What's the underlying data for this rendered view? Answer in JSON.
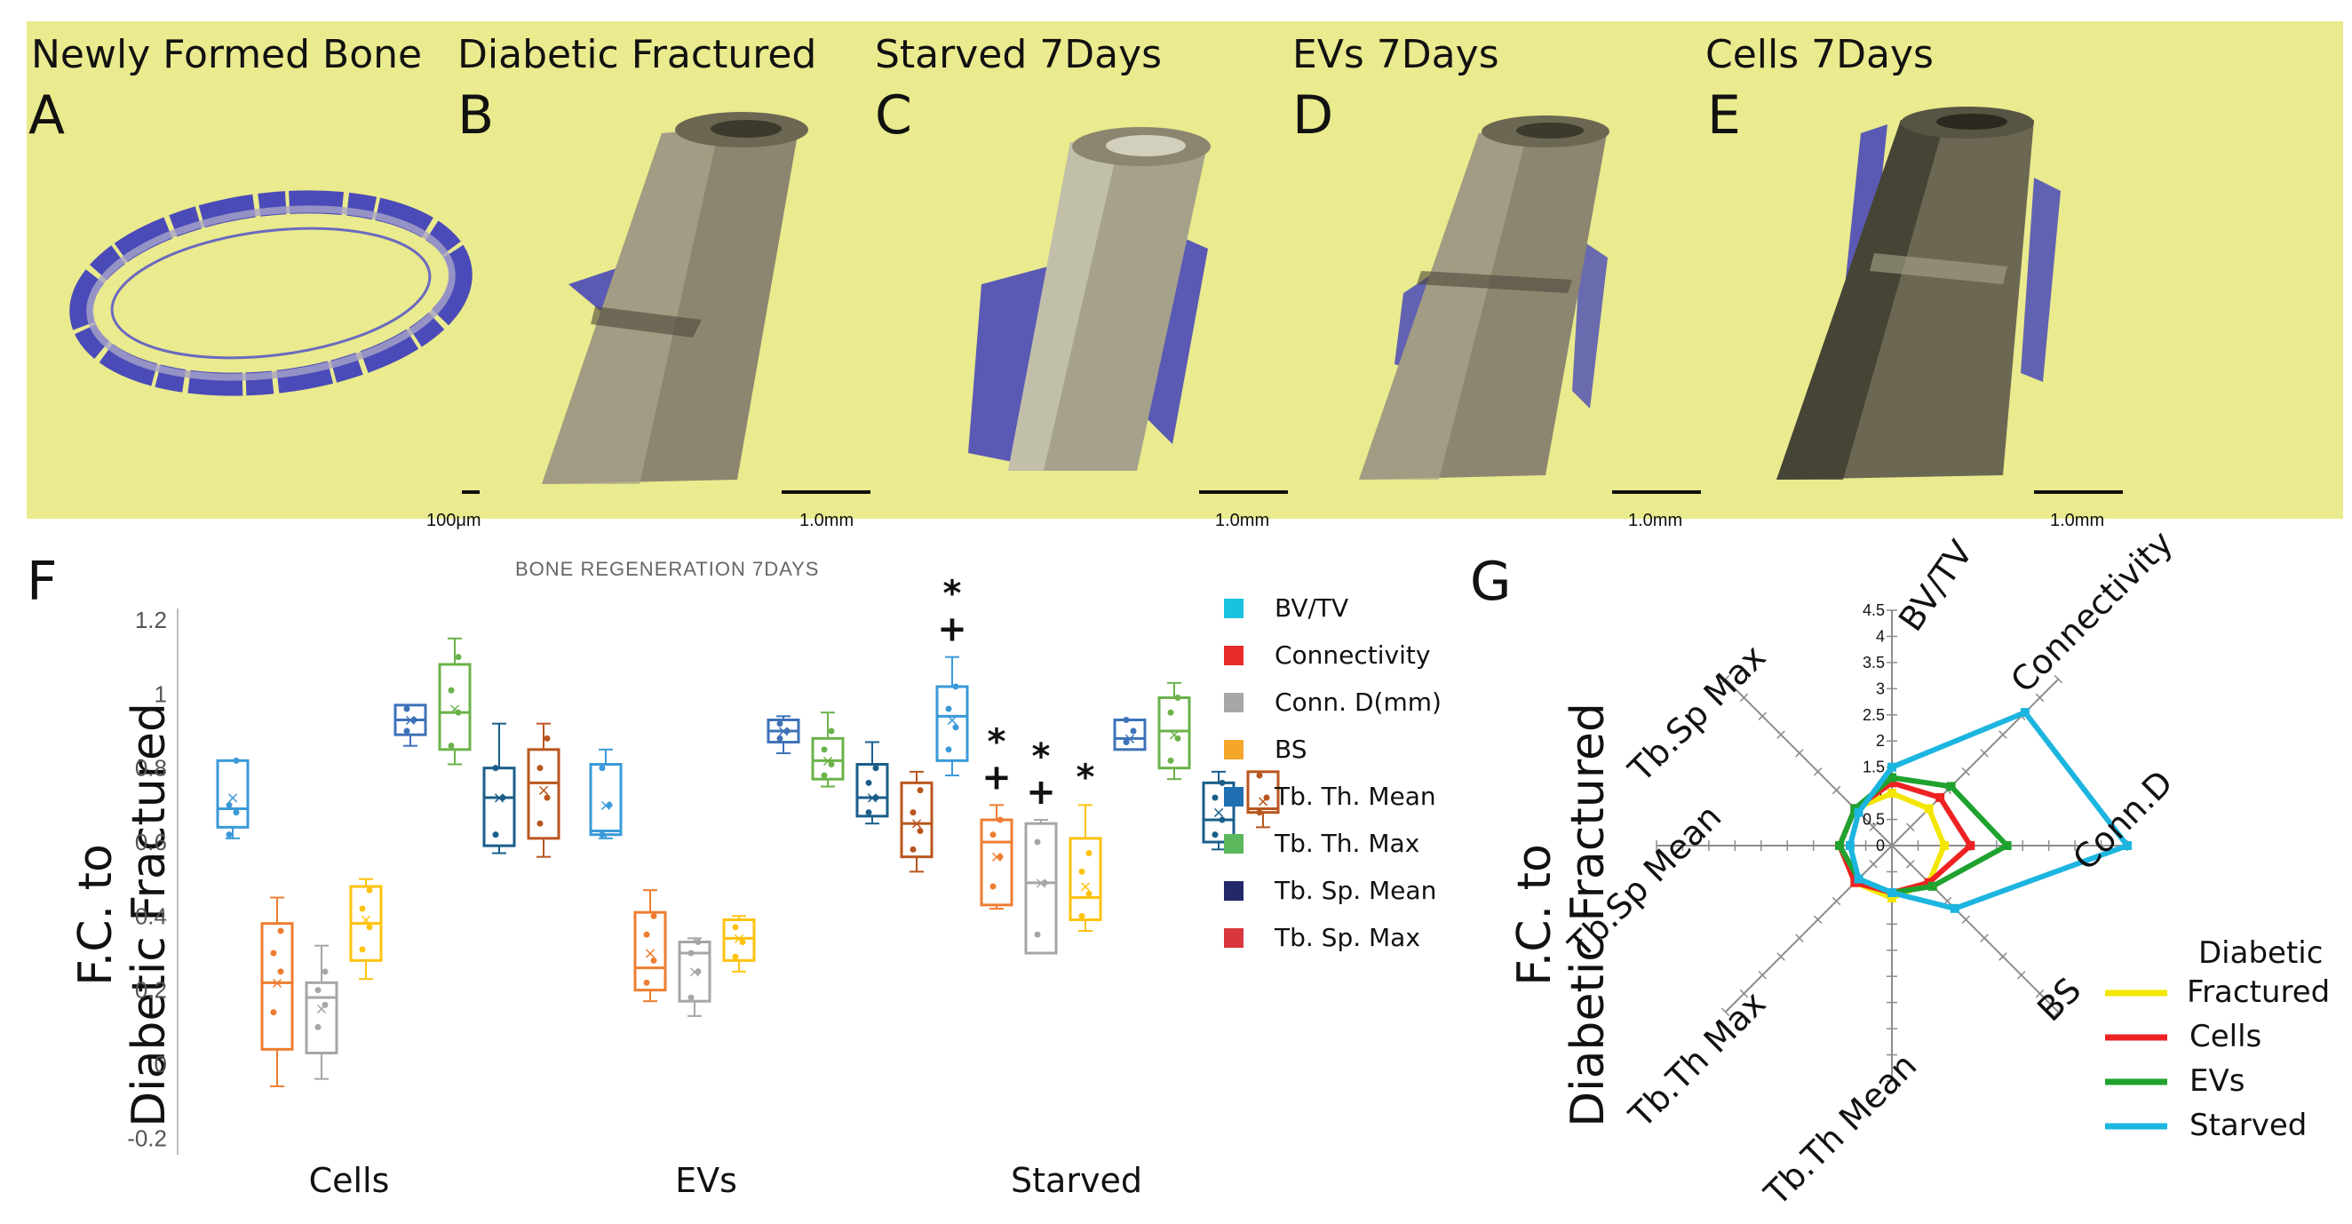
{
  "panels_top": [
    {
      "title": "Newly Formed Bone",
      "letter": "A",
      "scale": "100μm"
    },
    {
      "title": "Diabetic Fractured",
      "letter": "B",
      "scale": "1.0mm"
    },
    {
      "title": "Starved 7Days",
      "letter": "C",
      "scale": "1.0mm"
    },
    {
      "title": "EVs 7Days",
      "letter": "D",
      "scale": "1.0mm"
    },
    {
      "title": "Cells 7Days",
      "letter": "E",
      "scale": "1.0mm"
    }
  ],
  "colors": {
    "top_bg": "#eaea8e",
    "bone": "#8c8670",
    "new_bone": "#4a4ab8"
  },
  "chart_data": [
    {
      "type": "box",
      "letter": "F",
      "title": "BONE REGENERATION 7DAYS",
      "ylabel_line1": "F.C. to",
      "ylabel_line2": "Diabetic Fractured",
      "ylim": [
        -0.2,
        1.2
      ],
      "yticks": [
        "-0.2",
        "0",
        "0.2",
        "0.4",
        "0.6",
        "0.8",
        "1",
        "1.2"
      ],
      "groups": [
        "Cells",
        "EVs",
        "Starved"
      ],
      "legend": [
        {
          "label": "BV/TV",
          "color": "#19c3df"
        },
        {
          "label": "Connectivity",
          "color": "#e82a2a"
        },
        {
          "label": "Conn. D(mm)",
          "color": "#a6a6a6"
        },
        {
          "label": "BS",
          "color": "#f4a72a"
        },
        {
          "label": "Tb. Th. Mean",
          "color": "#1f6fb2"
        },
        {
          "label": "Tb. Th. Max",
          "color": "#5cb85c"
        },
        {
          "label": "Tb. Sp. Mean",
          "color": "#22286a"
        },
        {
          "label": "Tb. Sp. Max",
          "color": "#d9363e"
        }
      ],
      "series": [
        {
          "group": "Cells",
          "name": "BV/TV",
          "color": "#3a9ad9",
          "min": 0.61,
          "q1": 0.64,
          "median": 0.69,
          "q3": 0.82,
          "max": 0.82,
          "mean": 0.72,
          "points": [
            0.62,
            0.68,
            0.7,
            0.82
          ]
        },
        {
          "group": "Cells",
          "name": "Connectivity",
          "color": "#ee7d31",
          "min": -0.06,
          "q1": 0.04,
          "median": 0.22,
          "q3": 0.38,
          "max": 0.45,
          "mean": 0.22,
          "points": [
            0.14,
            0.25,
            0.3,
            0.36
          ]
        },
        {
          "group": "Cells",
          "name": "Conn. D(mm)",
          "color": "#a6a6a6",
          "min": -0.04,
          "q1": 0.03,
          "median": 0.18,
          "q3": 0.22,
          "max": 0.32,
          "mean": 0.15,
          "points": [
            0.1,
            0.16,
            0.2,
            0.25
          ]
        },
        {
          "group": "Cells",
          "name": "BS",
          "color": "#ffc20e",
          "min": 0.23,
          "q1": 0.28,
          "median": 0.38,
          "q3": 0.48,
          "max": 0.5,
          "mean": 0.39,
          "points": [
            0.31,
            0.37,
            0.42,
            0.47
          ]
        },
        {
          "group": "Cells",
          "name": "Tb. Th. Mean",
          "color": "#3d72b8",
          "min": 0.86,
          "q1": 0.89,
          "median": 0.93,
          "q3": 0.97,
          "max": 0.97,
          "mean": 0.93,
          "points": [
            0.9,
            0.93,
            0.96
          ]
        },
        {
          "group": "Cells",
          "name": "Tb. Th. Max",
          "color": "#6bb24a",
          "min": 0.81,
          "q1": 0.85,
          "median": 0.95,
          "q3": 1.08,
          "max": 1.15,
          "mean": 0.96,
          "points": [
            0.86,
            0.95,
            1.01,
            1.1
          ]
        },
        {
          "group": "Cells",
          "name": "Tb. Sp. Mean",
          "color": "#1a5e8a",
          "min": 0.57,
          "q1": 0.59,
          "median": 0.72,
          "q3": 0.8,
          "max": 0.92,
          "mean": 0.72,
          "points": [
            0.62,
            0.72,
            0.8
          ]
        },
        {
          "group": "Cells",
          "name": "Tb. Sp. Max",
          "color": "#b9561e",
          "min": 0.56,
          "q1": 0.61,
          "median": 0.76,
          "q3": 0.85,
          "max": 0.92,
          "mean": 0.74,
          "points": [
            0.65,
            0.72,
            0.8,
            0.88
          ]
        },
        {
          "group": "EVs",
          "name": "BV/TV",
          "color": "#3a9ad9",
          "min": 0.61,
          "q1": 0.62,
          "median": 0.63,
          "q3": 0.81,
          "max": 0.85,
          "mean": 0.7,
          "points": [
            0.62,
            0.7,
            0.8
          ]
        },
        {
          "group": "EVs",
          "name": "Connectivity",
          "color": "#ee7d31",
          "min": 0.17,
          "q1": 0.2,
          "median": 0.26,
          "q3": 0.41,
          "max": 0.47,
          "mean": 0.3,
          "points": [
            0.22,
            0.28,
            0.35,
            0.4
          ]
        },
        {
          "group": "EVs",
          "name": "Conn. D(mm)",
          "color": "#a6a6a6",
          "min": 0.13,
          "q1": 0.17,
          "median": 0.3,
          "q3": 0.33,
          "max": 0.34,
          "mean": 0.25,
          "points": [
            0.18,
            0.25,
            0.3,
            0.33
          ]
        },
        {
          "group": "EVs",
          "name": "BS",
          "color": "#ffc20e",
          "min": 0.25,
          "q1": 0.28,
          "median": 0.34,
          "q3": 0.39,
          "max": 0.4,
          "mean": 0.34,
          "points": [
            0.29,
            0.33,
            0.37
          ]
        },
        {
          "group": "EVs",
          "name": "Tb. Th. Mean",
          "color": "#3d72b8",
          "min": 0.84,
          "q1": 0.87,
          "median": 0.9,
          "q3": 0.93,
          "max": 0.94,
          "mean": 0.9,
          "points": [
            0.88,
            0.9,
            0.92
          ]
        },
        {
          "group": "EVs",
          "name": "Tb. Th. Max",
          "color": "#6bb24a",
          "min": 0.75,
          "q1": 0.77,
          "median": 0.82,
          "q3": 0.88,
          "max": 0.95,
          "mean": 0.82,
          "points": [
            0.78,
            0.81,
            0.85,
            0.9
          ]
        },
        {
          "group": "EVs",
          "name": "Tb. Sp. Mean",
          "color": "#1a5e8a",
          "min": 0.65,
          "q1": 0.67,
          "median": 0.72,
          "q3": 0.81,
          "max": 0.87,
          "mean": 0.72,
          "points": [
            0.68,
            0.72,
            0.76,
            0.8
          ]
        },
        {
          "group": "EVs",
          "name": "Tb. Sp. Max",
          "color": "#b9561e",
          "min": 0.52,
          "q1": 0.56,
          "median": 0.65,
          "q3": 0.76,
          "max": 0.79,
          "mean": 0.65,
          "points": [
            0.58,
            0.63,
            0.68,
            0.74
          ]
        },
        {
          "group": "Starved",
          "name": "BV/TV",
          "color": "#3a9ad9",
          "min": 0.78,
          "q1": 0.82,
          "median": 0.94,
          "q3": 1.02,
          "max": 1.1,
          "mean": 0.93,
          "points": [
            0.85,
            0.91,
            0.96,
            1.02
          ],
          "sig": [
            "*",
            "+"
          ]
        },
        {
          "group": "Starved",
          "name": "Connectivity",
          "color": "#ee7d31",
          "min": 0.42,
          "q1": 0.43,
          "median": 0.6,
          "q3": 0.66,
          "max": 0.7,
          "mean": 0.56,
          "points": [
            0.48,
            0.56,
            0.62,
            0.66
          ],
          "sig": [
            "*",
            "+"
          ]
        },
        {
          "group": "Starved",
          "name": "Conn. D(mm)",
          "color": "#a6a6a6",
          "min": 0.3,
          "q1": 0.3,
          "median": 0.49,
          "q3": 0.65,
          "max": 0.66,
          "mean": 0.49,
          "points": [
            0.35,
            0.49,
            0.6
          ],
          "sig": [
            "*",
            "+"
          ]
        },
        {
          "group": "Starved",
          "name": "BS",
          "color": "#ffc20e",
          "min": 0.36,
          "q1": 0.39,
          "median": 0.45,
          "q3": 0.61,
          "max": 0.7,
          "mean": 0.48,
          "points": [
            0.4,
            0.46,
            0.52,
            0.57
          ],
          "sig": [
            "*"
          ]
        },
        {
          "group": "Starved",
          "name": "Tb. Th. Mean",
          "color": "#3d72b8",
          "min": 0.85,
          "q1": 0.85,
          "median": 0.88,
          "q3": 0.93,
          "max": 0.93,
          "mean": 0.88,
          "points": [
            0.87,
            0.9,
            0.93
          ]
        },
        {
          "group": "Starved",
          "name": "Tb. Th. Max",
          "color": "#6bb24a",
          "min": 0.77,
          "q1": 0.8,
          "median": 0.9,
          "q3": 0.99,
          "max": 1.03,
          "mean": 0.89,
          "points": [
            0.82,
            0.88,
            0.95,
            0.99
          ]
        },
        {
          "group": "Starved",
          "name": "Tb. Sp. Mean",
          "color": "#1a5e8a",
          "min": 0.58,
          "q1": 0.6,
          "median": 0.66,
          "q3": 0.76,
          "max": 0.79,
          "mean": 0.68,
          "points": [
            0.62,
            0.66,
            0.72,
            0.76
          ]
        },
        {
          "group": "Starved",
          "name": "Tb. Sp. Max",
          "color": "#b9561e",
          "min": 0.64,
          "q1": 0.68,
          "median": 0.69,
          "q3": 0.79,
          "max": 0.79,
          "mean": 0.71,
          "points": [
            0.68,
            0.72,
            0.78
          ]
        }
      ]
    },
    {
      "type": "radar",
      "letter": "G",
      "ylabel_line1": "F.C. to",
      "ylabel_line2": "Diabetic Fractured",
      "axes": [
        "BV/TV",
        "Connectivity",
        "Conn.D",
        "BS",
        "Tb.Th Mean",
        "Tb.Th Max",
        "Tb.Sp Mean",
        "Tb.Sp Max"
      ],
      "rmax": 4.5,
      "ticks": [
        "0",
        "0.5",
        "1",
        "1.5",
        "2",
        "2.5",
        "3",
        "3.5",
        "4",
        "4.5"
      ],
      "series": [
        {
          "name": "Diabetic Fractured",
          "legend_line1": "Diabetic",
          "legend_line2": "Fractured",
          "color": "#f3e600",
          "values": [
            1,
            1,
            1,
            1,
            1,
            1,
            1,
            1
          ]
        },
        {
          "name": "Cells",
          "color": "#ee2222",
          "values": [
            1.2,
            1.3,
            1.5,
            1.0,
            0.9,
            1.0,
            1.0,
            1.0
          ]
        },
        {
          "name": "EVs",
          "color": "#1fa22e",
          "values": [
            1.3,
            1.6,
            2.2,
            1.1,
            0.9,
            0.9,
            1.0,
            1.0
          ]
        },
        {
          "name": "Starved",
          "color": "#1cb5e0",
          "values": [
            1.5,
            3.6,
            4.5,
            1.7,
            0.9,
            0.9,
            0.8,
            0.9
          ]
        }
      ]
    }
  ]
}
